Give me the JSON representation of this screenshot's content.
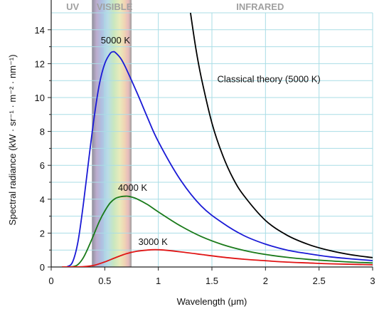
{
  "chart_data": {
    "type": "line",
    "title": "",
    "xlabel": "Wavelength (μm)",
    "ylabel": "Spectral radiance (kW · sr⁻¹ · m⁻² · nm⁻¹)",
    "xlim": [
      0,
      3
    ],
    "ylim": [
      0,
      15
    ],
    "x_ticks": [
      "0",
      "0.5",
      "1",
      "1.5",
      "2",
      "2.5",
      "3"
    ],
    "y_ticks": [
      "0",
      "2",
      "4",
      "6",
      "8",
      "10",
      "12",
      "14"
    ],
    "grid": true,
    "bands": [
      {
        "label": "UV",
        "x_center": 0.2
      },
      {
        "label": "VISIBLE",
        "x_range": [
          0.38,
          0.75
        ]
      },
      {
        "label": "INFRARED",
        "x_center": 1.95
      }
    ],
    "series": [
      {
        "name": "5000 K",
        "color": "#1a1ad6",
        "x": [
          0.1,
          0.15,
          0.2,
          0.25,
          0.3,
          0.35,
          0.4,
          0.45,
          0.5,
          0.55,
          0.58,
          0.6,
          0.65,
          0.7,
          0.8,
          0.9,
          1.0,
          1.2,
          1.4,
          1.6,
          1.8,
          2.0,
          2.2,
          2.4,
          2.6,
          2.8,
          3.0
        ],
        "values": [
          0.0,
          0.02,
          0.3,
          1.5,
          3.7,
          6.3,
          8.8,
          10.8,
          12.0,
          12.6,
          12.7,
          12.65,
          12.3,
          11.7,
          10.3,
          8.8,
          7.4,
          5.2,
          3.6,
          2.6,
          1.85,
          1.35,
          1.0,
          0.78,
          0.6,
          0.48,
          0.38
        ]
      },
      {
        "name": "4000 K",
        "color": "#1a7a1a",
        "x": [
          0.1,
          0.2,
          0.25,
          0.3,
          0.35,
          0.4,
          0.45,
          0.5,
          0.55,
          0.6,
          0.65,
          0.7,
          0.725,
          0.75,
          0.8,
          0.9,
          1.0,
          1.2,
          1.4,
          1.6,
          1.8,
          2.0,
          2.2,
          2.4,
          2.6,
          2.8,
          3.0
        ],
        "values": [
          0.0,
          0.02,
          0.15,
          0.55,
          1.2,
          1.95,
          2.7,
          3.3,
          3.78,
          4.05,
          4.15,
          4.18,
          4.17,
          4.13,
          4.02,
          3.68,
          3.25,
          2.45,
          1.8,
          1.32,
          0.98,
          0.74,
          0.57,
          0.45,
          0.36,
          0.29,
          0.24
        ]
      },
      {
        "name": "3000 K",
        "color": "#e01515",
        "x": [
          0.1,
          0.3,
          0.4,
          0.5,
          0.6,
          0.7,
          0.8,
          0.9,
          0.97,
          1.05,
          1.2,
          1.4,
          1.6,
          1.8,
          2.0,
          2.2,
          2.4,
          2.6,
          2.8,
          3.0
        ],
        "values": [
          0.0,
          0.02,
          0.1,
          0.3,
          0.55,
          0.78,
          0.93,
          1.0,
          1.02,
          1.0,
          0.9,
          0.74,
          0.58,
          0.46,
          0.37,
          0.29,
          0.24,
          0.19,
          0.16,
          0.13
        ]
      },
      {
        "name": "Classical theory (5000 K)",
        "color": "#000000",
        "x": [
          1.3,
          1.35,
          1.4,
          1.5,
          1.6,
          1.7,
          1.8,
          2.0,
          2.2,
          2.4,
          2.6,
          2.8,
          3.0
        ],
        "values": [
          15.0,
          12.9,
          11.2,
          8.5,
          6.6,
          5.2,
          4.2,
          2.75,
          1.88,
          1.33,
          0.97,
          0.72,
          0.55
        ]
      }
    ],
    "annotations": [
      {
        "text": "5000 K",
        "series": "5000 K",
        "x": 0.6,
        "y": 13.2
      },
      {
        "text": "4000 K",
        "series": "4000 K",
        "x": 0.76,
        "y": 4.5
      },
      {
        "text": "3000 K",
        "series": "3000 K",
        "x": 0.95,
        "y": 1.3
      },
      {
        "text": "Classical theory (5000 K)",
        "series": "Classical theory (5000 K)",
        "x": 1.55,
        "y": 10.9
      }
    ]
  }
}
